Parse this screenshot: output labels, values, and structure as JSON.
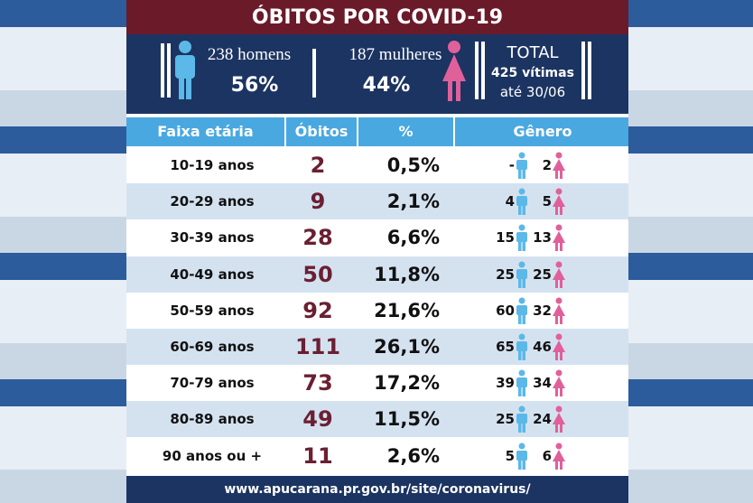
{
  "header": {
    "title": "ÓBITOS POR COVID-19"
  },
  "summary": {
    "men": {
      "label": "238 homens",
      "percent": "56%"
    },
    "women": {
      "label": "187 mulheres",
      "percent": "44%"
    },
    "total": {
      "label": "TOTAL",
      "victims": "425 vítimas",
      "date": "até 30/06"
    }
  },
  "table": {
    "columns": [
      "Faixa etária",
      "Óbitos",
      "%",
      "Gênero"
    ],
    "rows": [
      [
        "10-19 anos",
        "2",
        "0,5%",
        "-",
        "2"
      ],
      [
        "20-29 anos",
        "9",
        "2,1%",
        "4",
        "5"
      ],
      [
        "30-39 anos",
        "28",
        "6,6%",
        "15",
        "13"
      ],
      [
        "40-49 anos",
        "50",
        "11,8%",
        "25",
        "25"
      ],
      [
        "50-59 anos",
        "92",
        "21,6%",
        "60",
        "32"
      ],
      [
        "60-69 anos",
        "111",
        "26,1%",
        "65",
        "46"
      ],
      [
        "70-79 anos",
        "73",
        "17,2%",
        "39",
        "34"
      ],
      [
        "80-89 anos",
        "49",
        "11,5%",
        "25",
        "24"
      ],
      [
        "90 anos ou +",
        "11",
        "2,6%",
        "5",
        "6"
      ]
    ]
  },
  "footer": {
    "url": "www.apucarana.pr.gov.br/site/coronavirus/"
  }
}
